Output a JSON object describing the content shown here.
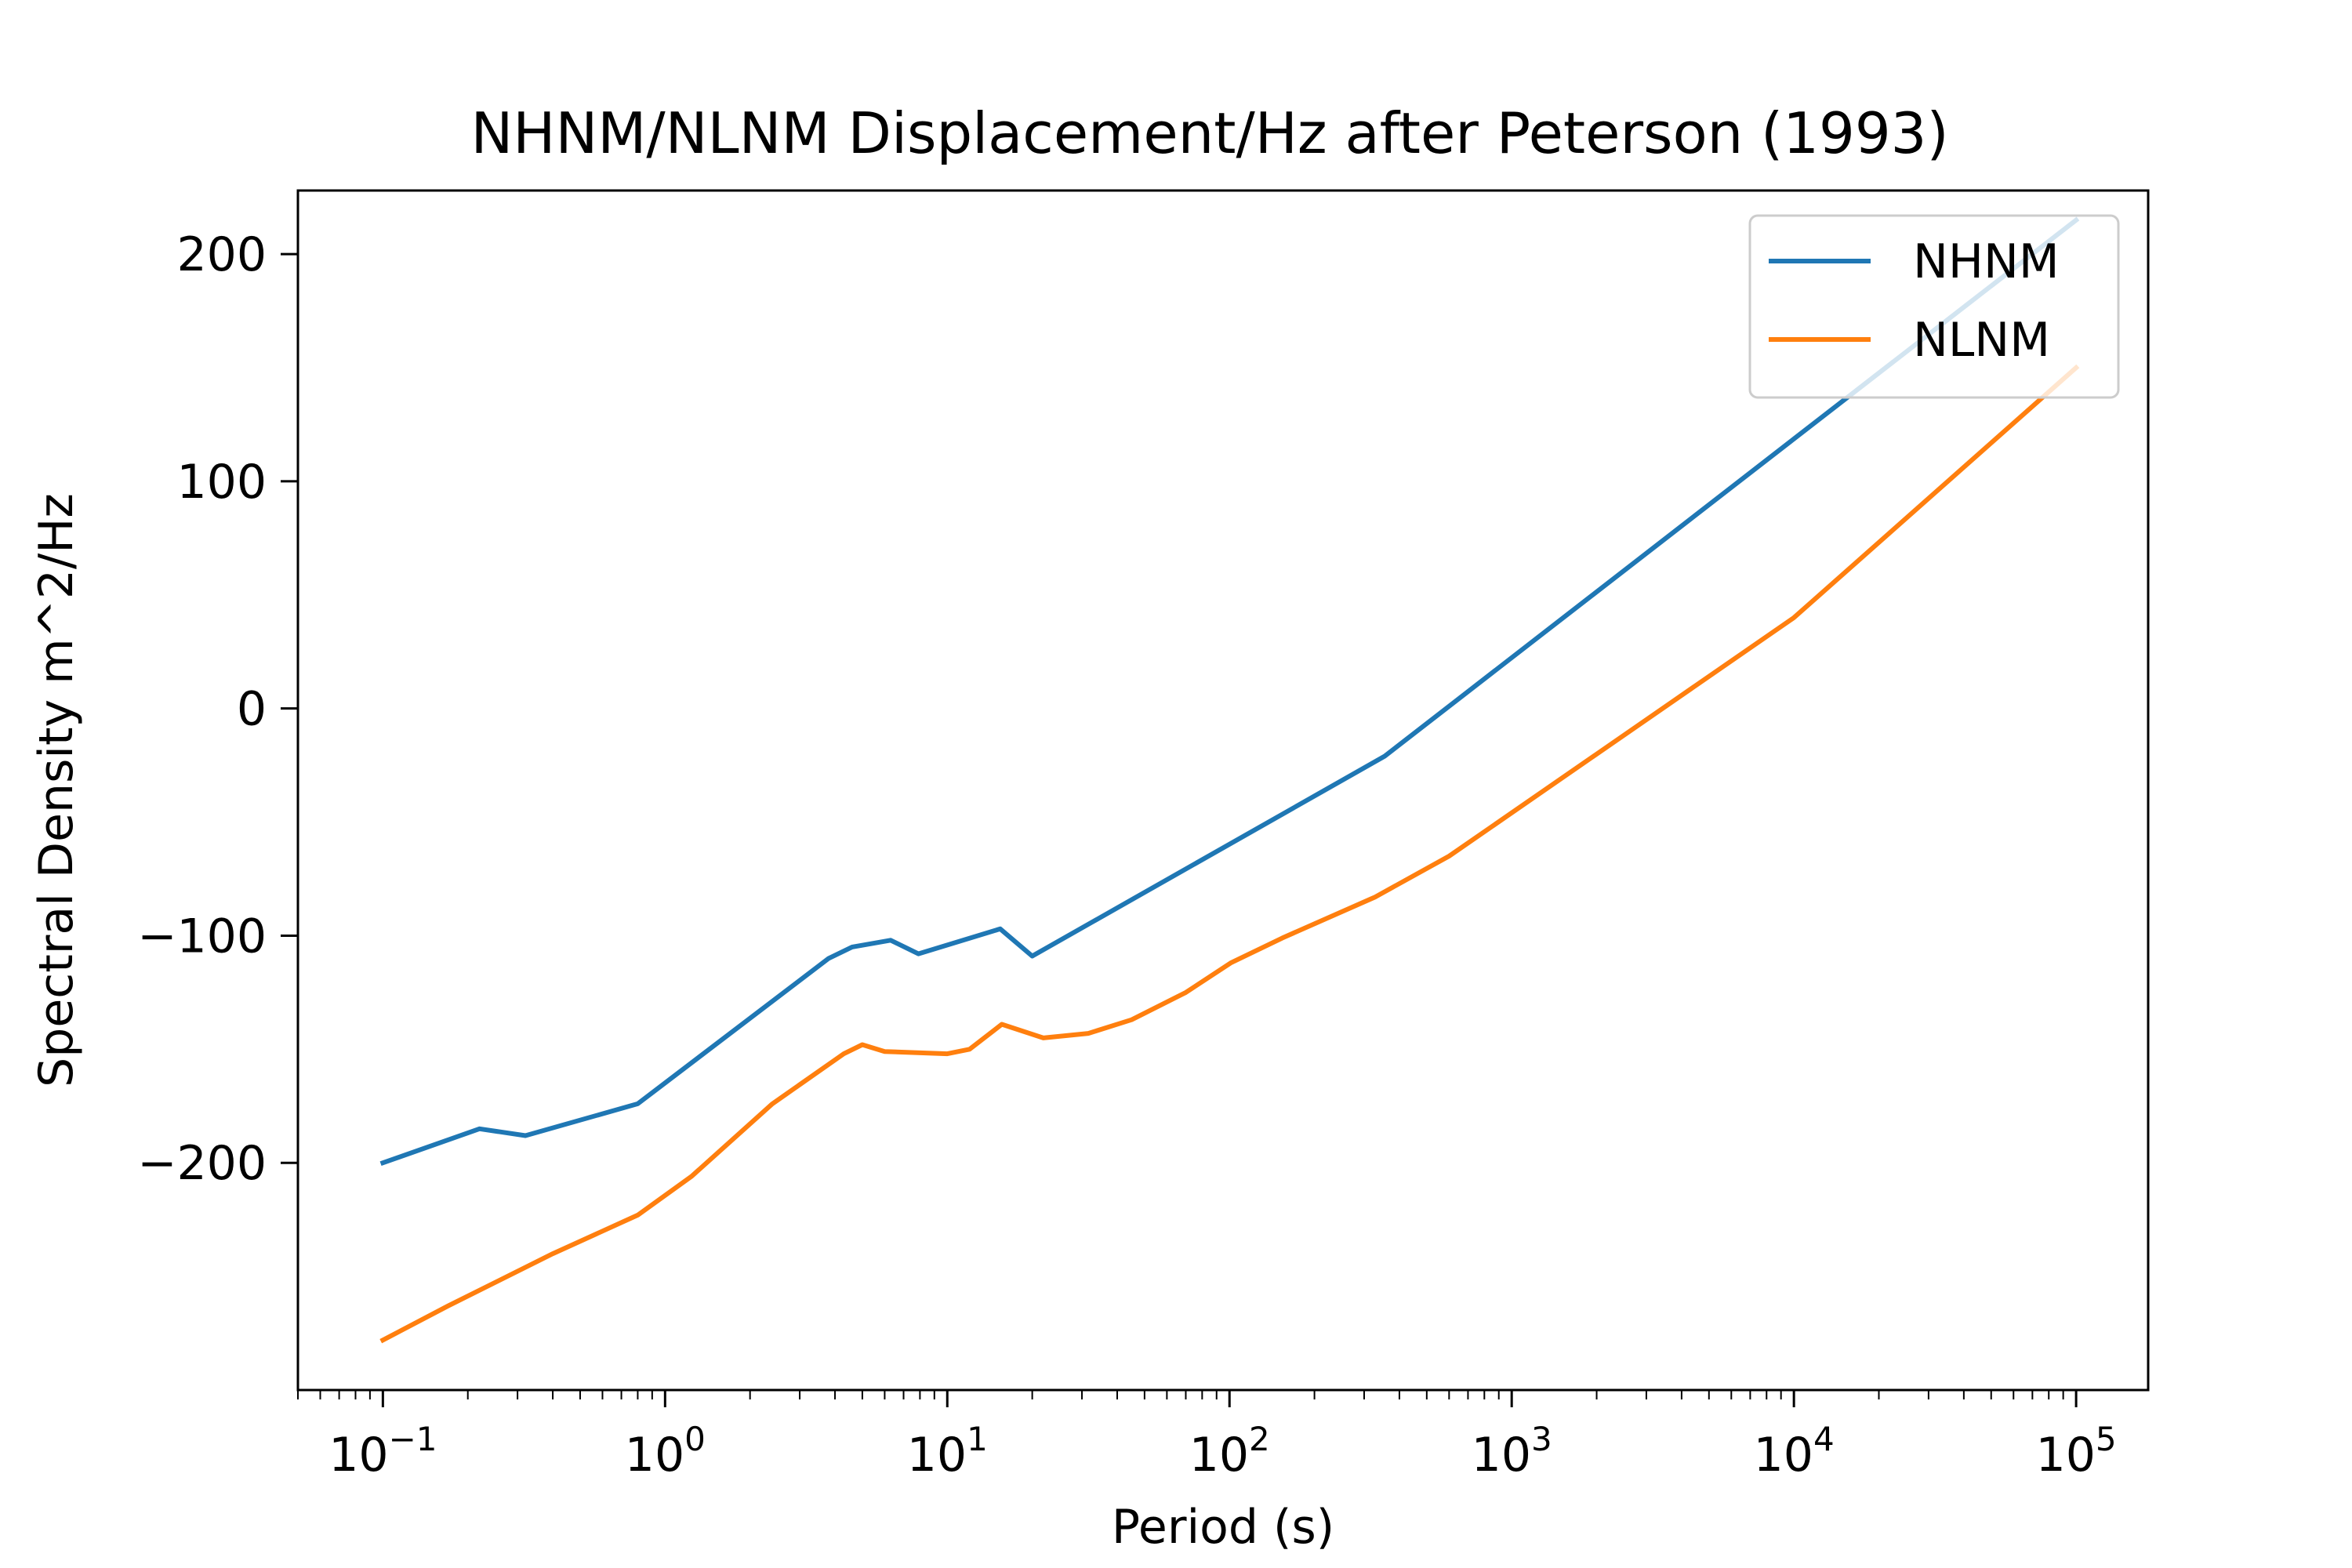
{
  "chart_data": {
    "type": "line",
    "title": "NHNM/NLNM Displacement/Hz after Peterson (1993)",
    "xlabel": "Period (s)",
    "ylabel": "Spectral Density m^2/Hz",
    "xscale": "log",
    "xlim": [
      0.05,
      180000
    ],
    "ylim": [
      -300,
      228
    ],
    "xticks": [
      {
        "value": 0.1,
        "base": "10",
        "exp": "−1"
      },
      {
        "value": 1,
        "base": "10",
        "exp": "0"
      },
      {
        "value": 10,
        "base": "10",
        "exp": "1"
      },
      {
        "value": 100,
        "base": "10",
        "exp": "2"
      },
      {
        "value": 1000,
        "base": "10",
        "exp": "3"
      },
      {
        "value": 10000,
        "base": "10",
        "exp": "4"
      },
      {
        "value": 100000,
        "base": "10",
        "exp": "5"
      }
    ],
    "yticks": [
      {
        "value": 200,
        "label": "200"
      },
      {
        "value": 100,
        "label": "100"
      },
      {
        "value": 0,
        "label": "0"
      },
      {
        "value": -100,
        "label": "−100"
      },
      {
        "value": -200,
        "label": "−200"
      }
    ],
    "grid": false,
    "legend_position": "top-right",
    "series": [
      {
        "name": "NHNM",
        "color": "#1f77b4",
        "x": [
          0.1,
          0.22,
          0.32,
          0.8,
          3.8,
          4.6,
          6.3,
          7.9,
          15.4,
          20,
          354.8,
          100000
        ],
        "y": [
          -200,
          -185,
          -188,
          -174,
          -110,
          -105,
          -102,
          -108,
          -97,
          -109,
          -21,
          215
        ]
      },
      {
        "name": "NLNM",
        "color": "#ff7f0e",
        "x": [
          0.1,
          0.17,
          0.4,
          0.8,
          1.24,
          2.4,
          4.3,
          5,
          6,
          10,
          12,
          15.6,
          21.9,
          31.6,
          45,
          70,
          101,
          154,
          328,
          600,
          10000,
          100000
        ],
        "y": [
          -278,
          -263,
          -240,
          -223,
          -206,
          -174,
          -152,
          -148,
          -151,
          -152,
          -150,
          -139,
          -145,
          -143,
          -137,
          -125,
          -112,
          -101,
          -83,
          -65,
          40,
          150
        ]
      }
    ]
  }
}
